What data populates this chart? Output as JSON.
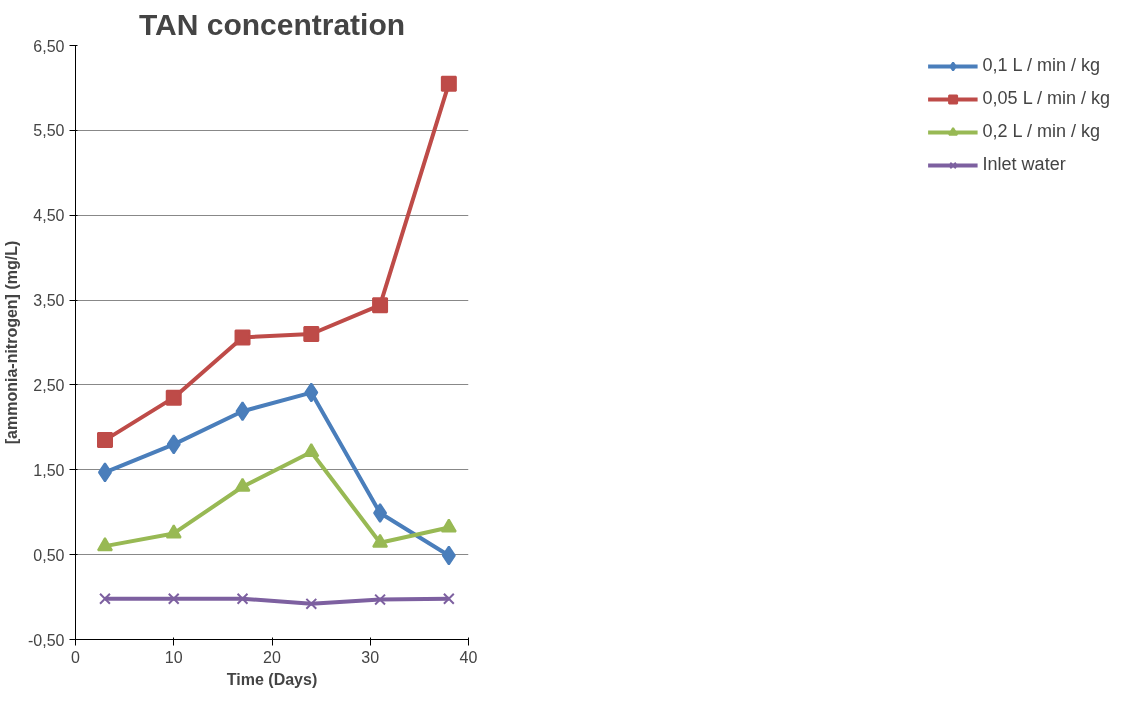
{
  "chart_data": {
    "type": "line",
    "title": "TAN concentration",
    "xlabel": "Time (Days)",
    "ylabel": "[ammonia-nitrogen] (mg/L)",
    "x": [
      3,
      10,
      17,
      24,
      31,
      38
    ],
    "series": [
      {
        "name": "0,1 L / min / kg",
        "color": "#4a7ebb",
        "marker": "diamond",
        "values": [
          1.47,
          1.8,
          2.19,
          2.41,
          0.99,
          0.49
        ]
      },
      {
        "name": "0,05 L / min / kg",
        "color": "#be4b48",
        "marker": "square",
        "values": [
          1.85,
          2.35,
          3.06,
          3.1,
          3.44,
          6.05
        ]
      },
      {
        "name": "0,2 L / min / kg",
        "color": "#98b954",
        "marker": "triangle",
        "values": [
          0.6,
          0.75,
          1.3,
          1.71,
          0.64,
          0.82
        ]
      },
      {
        "name": "Inlet water",
        "color": "#7d60a0",
        "marker": "cross",
        "values": [
          -0.02,
          -0.02,
          -0.02,
          -0.08,
          -0.03,
          -0.02
        ]
      }
    ],
    "xlim": [
      0,
      40
    ],
    "xticks": [
      0,
      10,
      20,
      30,
      40
    ],
    "ylim": [
      -0.5,
      6.5
    ],
    "yticks": [
      {
        "value": -0.5,
        "label": "-0,50"
      },
      {
        "value": 0.5,
        "label": "0,50"
      },
      {
        "value": 1.5,
        "label": "1,50"
      },
      {
        "value": 2.5,
        "label": "2,50"
      },
      {
        "value": 3.5,
        "label": "3,50"
      },
      {
        "value": 4.5,
        "label": "4,50"
      },
      {
        "value": 5.5,
        "label": "5,50"
      },
      {
        "value": 6.5,
        "label": "6,50"
      }
    ],
    "grid": "y",
    "legend": "right",
    "line_style": "solid"
  }
}
